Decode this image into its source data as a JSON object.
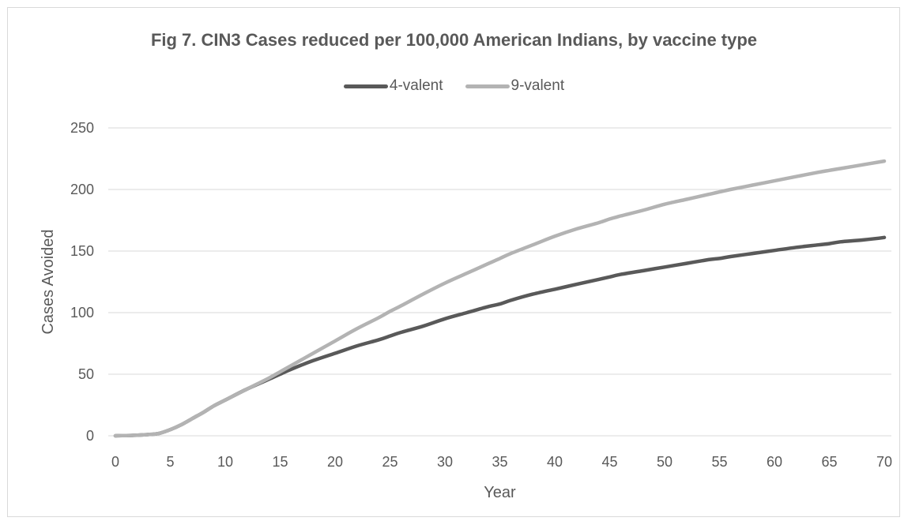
{
  "chart_data": {
    "type": "line",
    "title": "Fig 7. CIN3 Cases reduced per 100,000 American Indians, by vaccine type",
    "xlabel": "Year",
    "ylabel": "Cases Avoided",
    "xlim": [
      0,
      70
    ],
    "ylim": [
      0,
      250
    ],
    "x_ticks": [
      0,
      5,
      10,
      15,
      20,
      25,
      30,
      35,
      40,
      45,
      50,
      55,
      60,
      65,
      70
    ],
    "y_ticks": [
      0,
      50,
      100,
      150,
      200,
      250
    ],
    "grid": "horizontal",
    "legend_position": "top",
    "x": [
      0,
      1,
      2,
      3,
      4,
      5,
      6,
      7,
      8,
      9,
      10,
      12,
      14,
      15,
      16,
      18,
      20,
      22,
      24,
      25,
      26,
      28,
      30,
      32,
      34,
      35,
      36,
      38,
      40,
      42,
      44,
      45,
      46,
      48,
      50,
      52,
      54,
      55,
      56,
      58,
      60,
      62,
      64,
      65,
      66,
      68,
      70
    ],
    "series": [
      {
        "name": "4-valent",
        "color": "#595959",
        "values": [
          0,
          0.2,
          0.5,
          1,
          2,
          5,
          9,
          14,
          19,
          24.5,
          29,
          38,
          46,
          50,
          54,
          61,
          67,
          73,
          78,
          81,
          84,
          89,
          95,
          100,
          105,
          107,
          110,
          115,
          119,
          123,
          127,
          129,
          131,
          134,
          137,
          140,
          143,
          144,
          145.5,
          148,
          150.5,
          153,
          155,
          156,
          157.5,
          159,
          161
        ]
      },
      {
        "name": "9-valent",
        "color": "#b3b3b3",
        "values": [
          0,
          0.2,
          0.5,
          1,
          2,
          5,
          9,
          14,
          19,
          24.5,
          29,
          38,
          47,
          52,
          57,
          67,
          77,
          87,
          96,
          101,
          105.5,
          115,
          124,
          132,
          140,
          144,
          148,
          155,
          162,
          168,
          173,
          176,
          178.5,
          183,
          188,
          192,
          196,
          198,
          200,
          203.5,
          207,
          210.5,
          214,
          215.5,
          217,
          220,
          223
        ]
      }
    ]
  }
}
